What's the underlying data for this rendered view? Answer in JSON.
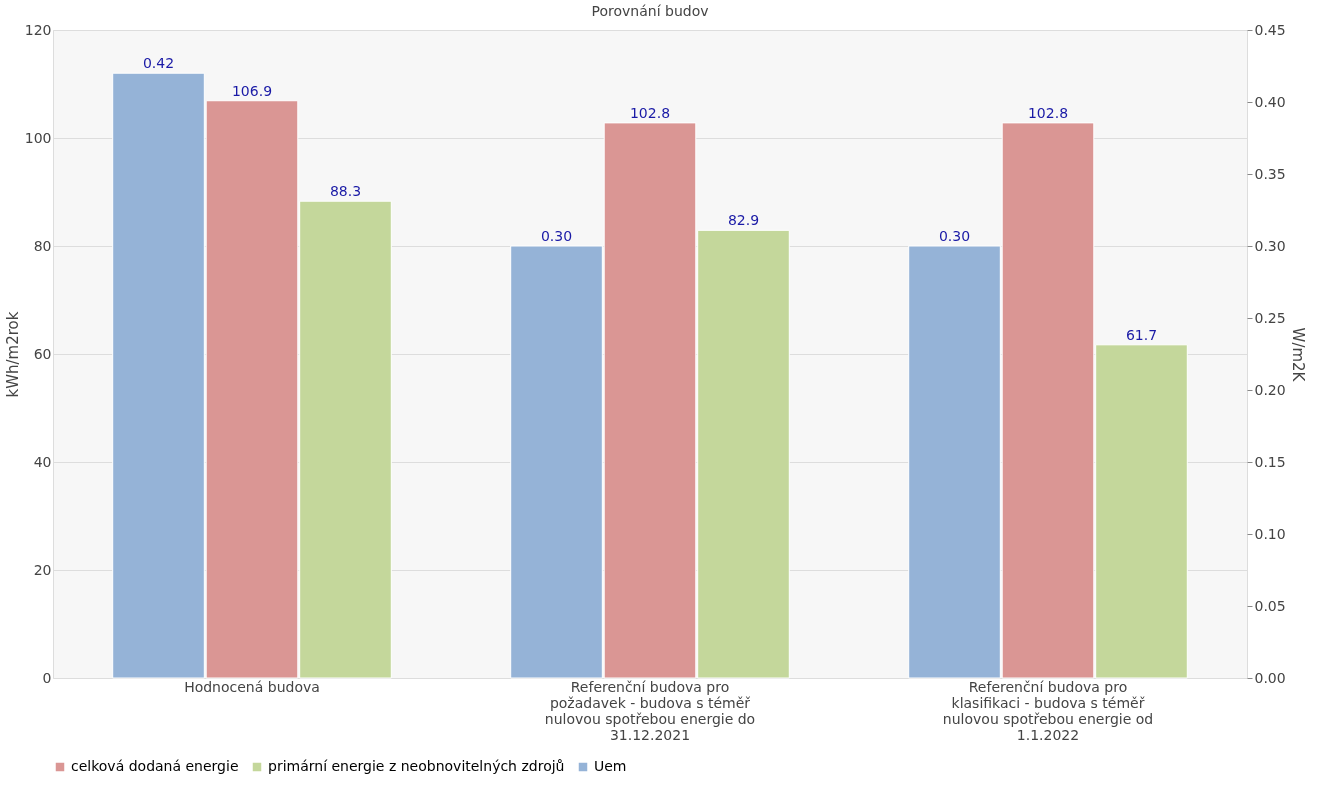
{
  "chart_data": {
    "type": "bar",
    "title": "Porovnání budov",
    "ylabel": "kWh/m2rok",
    "y2label": "W/m2K",
    "categories": [
      "Hodnocená budova",
      "Referenční budova pro požadavek - budova s téměř nulovou spotřebou energie do 31.12.2021",
      "Referenční budova pro klasifikaci - budova s téměř nulovou spotřebou energie od 1.1.2022"
    ],
    "series": [
      {
        "name": "Uem",
        "color": "#95b3d7",
        "axis": "y2",
        "values": [
          0.42,
          0.3,
          0.3
        ],
        "value_labels": [
          "0.42",
          "0.30",
          "0.30"
        ]
      },
      {
        "name": "celková dodaná energie",
        "color": "#da9694",
        "values": [
          106.9,
          102.8,
          102.8
        ],
        "value_labels": [
          "106.9",
          "102.8",
          "102.8"
        ]
      },
      {
        "name": "primární energie z neobnovitelných zdrojů",
        "color": "#c4d79b",
        "values": [
          88.3,
          82.9,
          61.7
        ],
        "value_labels": [
          "88.3",
          "82.9",
          "61.7"
        ]
      }
    ],
    "ylim": [
      0,
      120
    ],
    "yticks": [
      0,
      20,
      40,
      60,
      80,
      100,
      120
    ],
    "y2lim": [
      0,
      0.45
    ],
    "y2ticks": [
      {
        "value": 0,
        "label": "0.00"
      },
      {
        "value": 0.05,
        "label": "0.05"
      },
      {
        "value": 0.1,
        "label": "0.10"
      },
      {
        "value": 0.15,
        "label": "0.15"
      },
      {
        "value": 0.2,
        "label": "0.20"
      },
      {
        "value": 0.25,
        "label": "0.25"
      },
      {
        "value": 0.3,
        "label": "0.30"
      },
      {
        "value": 0.35,
        "label": "0.35"
      },
      {
        "value": 0.4,
        "label": "0.40"
      },
      {
        "value": 0.45,
        "label": "0.45"
      }
    ],
    "grid": "y",
    "legend": "bottom"
  }
}
